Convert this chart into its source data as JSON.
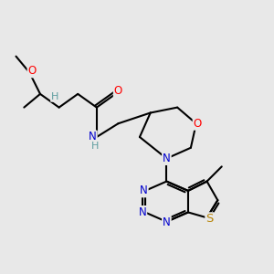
{
  "bg_color": "#e8e8e8",
  "atom_colors": {
    "C": "#000000",
    "N": "#0000cd",
    "O": "#ff0000",
    "S": "#b8860b",
    "H": "#5f9ea0"
  },
  "bond_color": "#000000",
  "bond_width": 1.5,
  "font_size": 8.5,
  "figsize": [
    3.0,
    3.0
  ],
  "dpi": 100
}
